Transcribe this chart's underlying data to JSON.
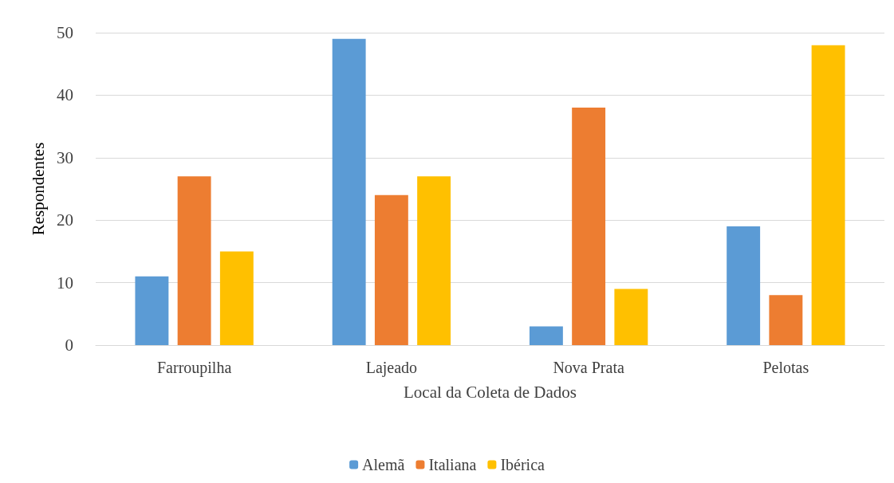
{
  "chart_data": {
    "type": "bar",
    "xlabel": "Local da Coleta de Dados",
    "ylabel": "Respondentes",
    "categories": [
      "Farroupilha",
      "Lajeado",
      "Nova Prata",
      "Pelotas"
    ],
    "series": [
      {
        "name": "Alemã",
        "color": "#5b9bd5",
        "values": [
          11,
          49,
          3,
          19
        ]
      },
      {
        "name": "Italiana",
        "color": "#ed7d31",
        "values": [
          27,
          24,
          38,
          8
        ]
      },
      {
        "name": "Ibérica",
        "color": "#ffc000",
        "values": [
          15,
          27,
          9,
          48
        ]
      }
    ],
    "ylim": [
      0,
      50
    ],
    "yticks": [
      0,
      10,
      20,
      30,
      40,
      50
    ],
    "grid": "y",
    "legend": "bottom"
  }
}
